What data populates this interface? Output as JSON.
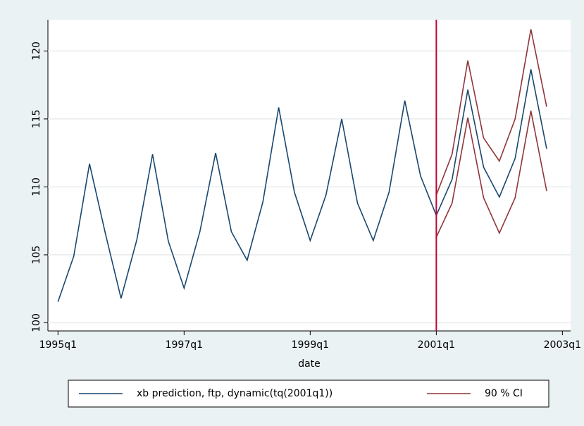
{
  "chart_data": {
    "type": "line",
    "x_label": "date",
    "x": [
      1995,
      1995.25,
      1995.5,
      1995.75,
      1996,
      1996.25,
      1996.5,
      1996.75,
      1997,
      1997.25,
      1997.5,
      1997.75,
      1998,
      1998.25,
      1998.5,
      1998.75,
      1999,
      1999.25,
      1999.5,
      1999.75,
      2000,
      2000.25,
      2000.5,
      2000.75,
      2001,
      2001.25,
      2001.5,
      2001.75,
      2002,
      2002.25,
      2002.5,
      2002.75
    ],
    "series": [
      {
        "name": "xb prediction, ftp, dynamic(tq(2001q1))",
        "color": "#1a476f",
        "values": [
          101.55,
          104.9,
          111.7,
          106.6,
          101.8,
          106.1,
          112.4,
          106.0,
          102.55,
          106.7,
          112.5,
          106.7,
          104.6,
          108.9,
          115.85,
          109.6,
          106.05,
          109.4,
          115.0,
          108.8,
          106.05,
          109.6,
          116.35,
          110.8,
          107.9,
          110.55,
          117.15,
          111.45,
          109.25,
          112.1,
          118.65,
          112.8
        ]
      },
      {
        "name": "90 % CI",
        "color": "#90353b",
        "upper": [
          null,
          null,
          null,
          null,
          null,
          null,
          null,
          null,
          null,
          null,
          null,
          null,
          null,
          null,
          null,
          null,
          null,
          null,
          null,
          null,
          null,
          null,
          null,
          null,
          109.4,
          112.4,
          119.3,
          113.6,
          111.9,
          115.0,
          121.6,
          115.9
        ],
        "lower": [
          null,
          null,
          null,
          null,
          null,
          null,
          null,
          null,
          null,
          null,
          null,
          null,
          null,
          null,
          null,
          null,
          null,
          null,
          null,
          null,
          null,
          null,
          null,
          null,
          106.3,
          108.8,
          115.1,
          109.2,
          106.6,
          109.2,
          115.6,
          109.7
        ]
      }
    ],
    "xline": 2001,
    "xline_color": "#c10534",
    "xlim": [
      1994.84,
      2003.13
    ],
    "xticks": [
      {
        "value": 1995,
        "label": "1995q1"
      },
      {
        "value": 1997,
        "label": "1997q1"
      },
      {
        "value": 1999,
        "label": "1999q1"
      },
      {
        "value": 2001,
        "label": "2001q1"
      },
      {
        "value": 2003,
        "label": "2003q1"
      }
    ],
    "ylim": [
      99.4,
      122.3
    ],
    "yticks": [
      100,
      105,
      110,
      115,
      120
    ],
    "grid": true,
    "legend": "bottom"
  }
}
